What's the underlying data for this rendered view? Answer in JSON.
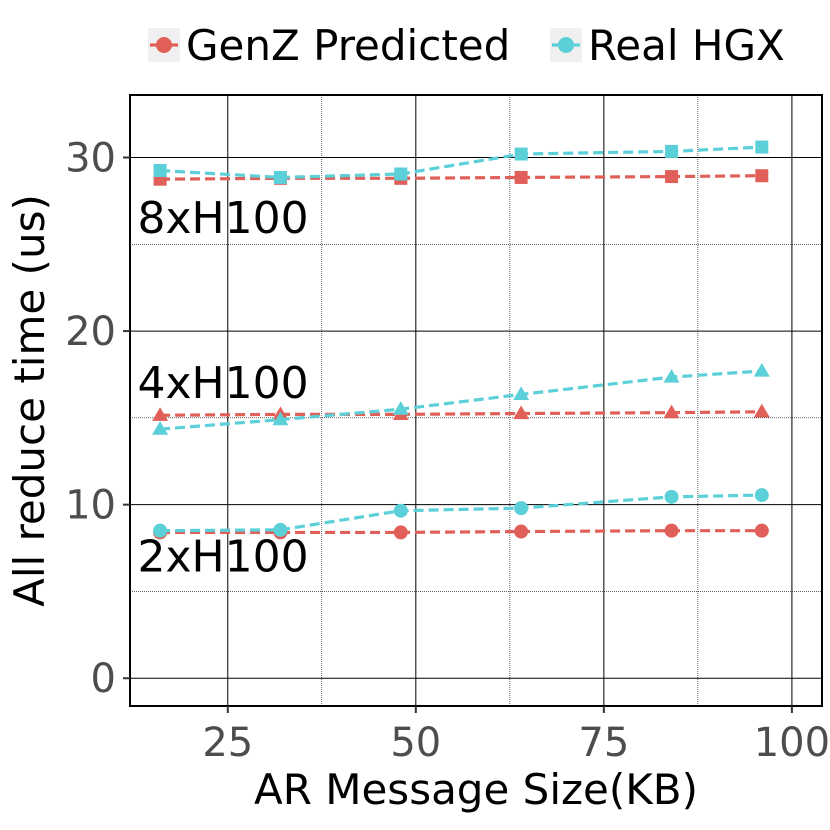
{
  "chart_data": {
    "type": "line",
    "xlabel": "AR Message Size(KB)",
    "ylabel": "All reduce time (us)",
    "xlim": [
      12,
      104
    ],
    "ylim": [
      -1.6,
      33.6
    ],
    "xticks": [
      25,
      50,
      75,
      100
    ],
    "xtick_labels": [
      "25",
      "50",
      "75",
      "100"
    ],
    "yticks": [
      0,
      10,
      20,
      30
    ],
    "ytick_labels": [
      "0",
      "10",
      "20",
      "30"
    ],
    "x_minor_grid": [
      37.5,
      62.5,
      87.5
    ],
    "y_minor_grid": [
      5,
      15,
      25
    ],
    "grid": true,
    "legend_position": "top",
    "legend": [
      {
        "label": "GenZ Predicted",
        "color": "#e06059"
      },
      {
        "label": "Real HGX",
        "color": "#5bd0d8"
      }
    ],
    "x": [
      16,
      32,
      48,
      64,
      84,
      96
    ],
    "series": [
      {
        "legend": "GenZ Predicted",
        "group": "2xH100",
        "marker": "circle",
        "color": "#e06059",
        "values": [
          8.4,
          8.4,
          8.4,
          8.45,
          8.5,
          8.5
        ]
      },
      {
        "legend": "Real HGX",
        "group": "2xH100",
        "marker": "circle",
        "color": "#5bd0d8",
        "values": [
          8.5,
          8.55,
          9.65,
          9.8,
          10.45,
          10.55
        ]
      },
      {
        "legend": "GenZ Predicted",
        "group": "4xH100",
        "marker": "triangle",
        "color": "#e06059",
        "values": [
          15.15,
          15.2,
          15.2,
          15.25,
          15.3,
          15.35
        ]
      },
      {
        "legend": "Real HGX",
        "group": "4xH100",
        "marker": "triangle",
        "color": "#5bd0d8",
        "values": [
          14.35,
          14.9,
          15.5,
          16.35,
          17.35,
          17.7
        ]
      },
      {
        "legend": "GenZ Predicted",
        "group": "8xH100",
        "marker": "square",
        "color": "#e06059",
        "values": [
          28.75,
          28.8,
          28.8,
          28.85,
          28.9,
          28.95
        ]
      },
      {
        "legend": "Real HGX",
        "group": "8xH100",
        "marker": "square",
        "color": "#5bd0d8",
        "values": [
          29.25,
          28.85,
          29.05,
          30.2,
          30.35,
          30.6
        ]
      }
    ],
    "annotations": [
      {
        "text": "8xH100",
        "x": 13,
        "y": 26.5
      },
      {
        "text": "4xH100",
        "x": 13,
        "y": 17.0
      },
      {
        "text": "2xH100",
        "x": 13,
        "y": 7.0
      }
    ]
  }
}
